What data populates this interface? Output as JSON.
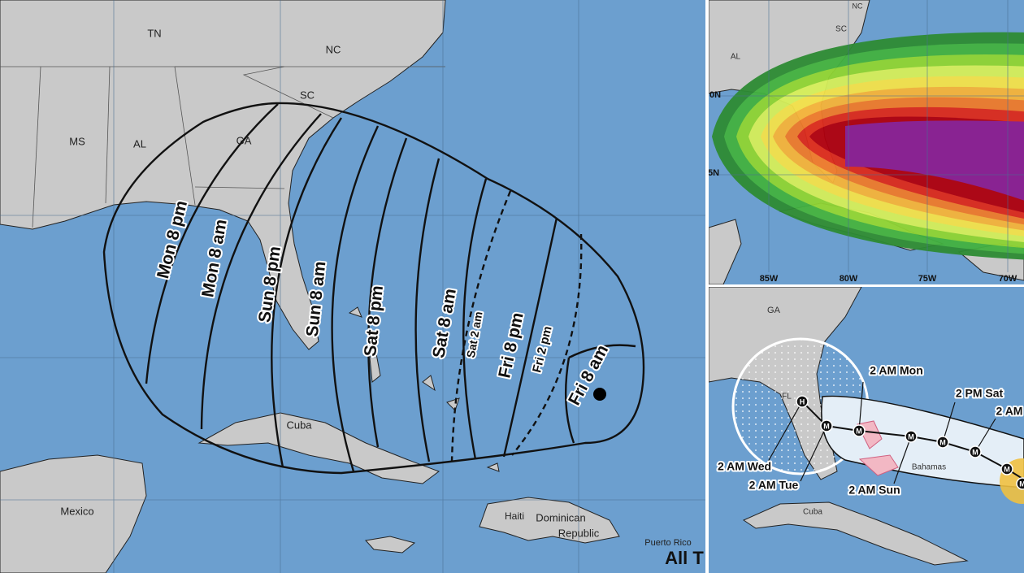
{
  "left_map": {
    "region_labels": [
      "TN",
      "NC",
      "SC",
      "GA",
      "MS",
      "AL",
      "Cuba",
      "Mexico",
      "Haiti",
      "Dominican",
      "Republic",
      "Puerto Rico"
    ],
    "time_labels": [
      "Mon 8 pm",
      "Mon 8 am",
      "Sun 8 pm",
      "Sun 8 am",
      "Sat 8 pm",
      "Sat 8 am",
      "Sat 2 am",
      "Fri 8 pm",
      "Fri 2 pm",
      "Fri 8 am"
    ],
    "caption": "All T"
  },
  "wind_map": {
    "region_labels": [
      "NC",
      "SC",
      "AL"
    ],
    "lon_labels": [
      "85W",
      "80W",
      "75W",
      "70W"
    ],
    "lat_labels": [
      "0N",
      "5N"
    ]
  },
  "cone_map": {
    "region_labels": [
      "GA",
      "FL",
      "Bahamas",
      "Cuba"
    ],
    "time_labels": [
      "2 AM Mon",
      "2 PM Sat",
      "2 AM",
      "2 AM Wed",
      "2 AM Tue",
      "2 AM Sun"
    ],
    "markers": [
      "H",
      "M",
      "M",
      "M",
      "M",
      "M",
      "M",
      "M"
    ]
  }
}
